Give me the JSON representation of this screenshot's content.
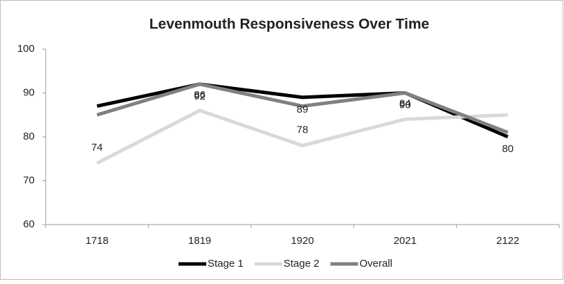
{
  "chart_data": {
    "type": "line",
    "title": "Levenmouth Responsiveness Over Time",
    "categories": [
      "1718",
      "1819",
      "1920",
      "2021",
      "2122"
    ],
    "series": [
      {
        "name": "Stage 1",
        "color": "#000000",
        "values": [
          87,
          92,
          89,
          90,
          80
        ],
        "value_labels": [
          null,
          "92",
          "89",
          "90",
          "80"
        ]
      },
      {
        "name": "Stage 2",
        "color": "#d9d9d9",
        "values": [
          74,
          86,
          78,
          84,
          85
        ],
        "value_labels": [
          "74",
          "86",
          "78",
          "84",
          null
        ]
      },
      {
        "name": "Overall",
        "color": "#808080",
        "values": [
          85,
          92,
          87,
          90,
          81
        ]
      }
    ],
    "ylim": [
      60,
      100
    ],
    "yticks": [
      60,
      70,
      80,
      90,
      100
    ],
    "grid": false,
    "legend": "bottom"
  }
}
